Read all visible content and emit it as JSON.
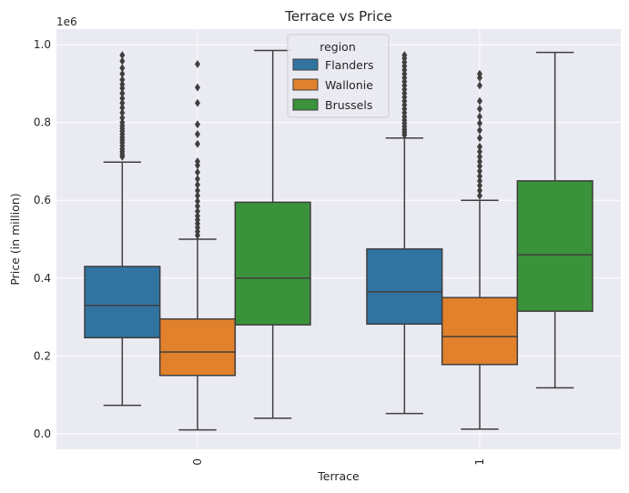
{
  "chart_data": {
    "type": "box",
    "title": "Terrace vs Price",
    "xlabel": "Terrace",
    "ylabel": "Price (in million)",
    "y_offset_label": "1e6",
    "ylim": [
      -40000,
      1040000
    ],
    "yticks": [
      0.0,
      0.2,
      0.4,
      0.6,
      0.8,
      1.0
    ],
    "ytick_labels": [
      "0.0",
      "0.2",
      "0.4",
      "0.6",
      "0.8",
      "1.0"
    ],
    "grid": true,
    "legend_title": "region",
    "legend_position": "top-center",
    "categories": [
      "0",
      "1"
    ],
    "series": [
      {
        "name": "Flanders",
        "color": "#3274a1",
        "boxes": [
          {
            "whislo": 73000,
            "q1": 247000,
            "med": 330000,
            "q3": 430000,
            "whishi": 698000,
            "fliers": [
              712000,
              718000,
              725000,
              732000,
              740000,
              748000,
              755000,
              762000,
              770000,
              778000,
              785000,
              792000,
              800000,
              812000,
              825000,
              838000,
              850000,
              862000,
              875000,
              888000,
              898000,
              910000,
              925000,
              940000,
              958000,
              973000
            ]
          },
          {
            "whislo": 52000,
            "q1": 282000,
            "med": 365000,
            "q3": 475000,
            "whishi": 760000,
            "fliers": [
              768000,
              775000,
              782000,
              790000,
              798000,
              806000,
              815000,
              825000,
              835000,
              845000,
              855000,
              865000,
              875000,
              885000,
              895000,
              905000,
              915000,
              925000,
              935000,
              945000,
              955000,
              965000,
              973000
            ]
          }
        ]
      },
      {
        "name": "Wallonie",
        "color": "#e1812c",
        "boxes": [
          {
            "whislo": 10000,
            "q1": 150000,
            "med": 210000,
            "q3": 295000,
            "whishi": 500000,
            "fliers": [
              510000,
              520000,
              530000,
              540000,
              550000,
              560000,
              572000,
              585000,
              598000,
              612000,
              625000,
              640000,
              655000,
              672000,
              690000,
              700000,
              745000,
              770000,
              795000,
              850000,
              890000,
              950000
            ]
          },
          {
            "whislo": 12000,
            "q1": 178000,
            "med": 250000,
            "q3": 350000,
            "whishi": 600000,
            "fliers": [
              612000,
              625000,
              638000,
              650000,
              662000,
              675000,
              688000,
              700000,
              712000,
              725000,
              738000,
              760000,
              780000,
              798000,
              815000,
              835000,
              855000,
              895000,
              915000,
              925000
            ]
          }
        ]
      },
      {
        "name": "Brussels",
        "color": "#3a923a",
        "boxes": [
          {
            "whislo": 40000,
            "q1": 280000,
            "med": 400000,
            "q3": 595000,
            "whishi": 985000,
            "fliers": []
          },
          {
            "whislo": 118000,
            "q1": 315000,
            "med": 460000,
            "q3": 650000,
            "whishi": 980000,
            "fliers": []
          }
        ]
      }
    ]
  }
}
